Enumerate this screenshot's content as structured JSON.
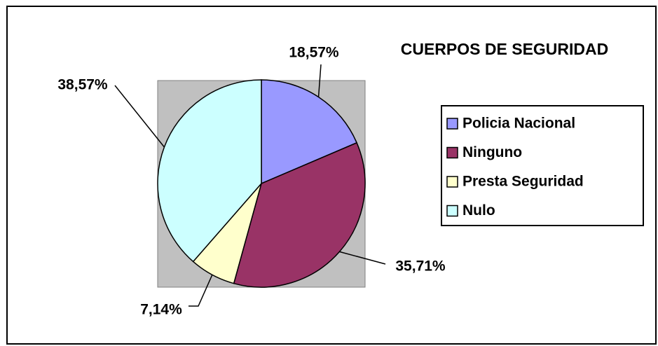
{
  "chart_data": {
    "type": "pie",
    "title": "CUERPOS DE SEGURIDAD",
    "categories": [
      "Policia Nacional",
      "Ninguno",
      "Presta Seguridad",
      "Nulo"
    ],
    "values": [
      18.57,
      35.71,
      7.14,
      38.57
    ],
    "value_labels": [
      "18,57%",
      "35,71%",
      "7,14%",
      "38,57%"
    ],
    "colors": [
      "#9999ff",
      "#993366",
      "#ffffcc",
      "#ccffff"
    ],
    "legend": "right"
  }
}
